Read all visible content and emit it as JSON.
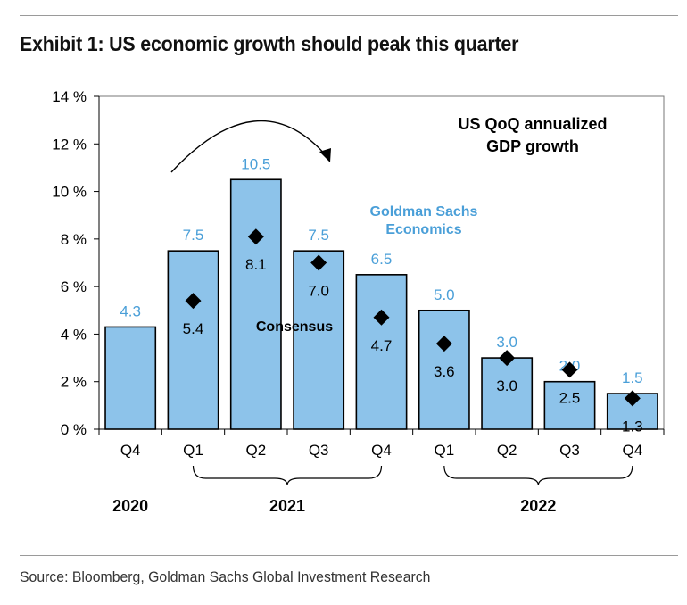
{
  "title": "Exhibit 1: US economic growth should peak this quarter",
  "source": "Source: Bloomberg, Goldman Sachs Global Investment Research",
  "colors": {
    "bar_fill": "#8dc3ea",
    "bar_stroke": "#000000",
    "gs_label": "#4a9fd8",
    "marker": "#000000",
    "text": "#000000"
  },
  "chart_data": {
    "type": "bar",
    "title": "US QoQ annualized GDP growth",
    "title_lines": [
      "US QoQ annualized",
      "GDP growth"
    ],
    "categories": [
      "Q4",
      "Q1",
      "Q2",
      "Q3",
      "Q4",
      "Q1",
      "Q2",
      "Q3",
      "Q4"
    ],
    "years": [
      {
        "label": "2020",
        "from": 0,
        "to": 0
      },
      {
        "label": "2021",
        "from": 1,
        "to": 4
      },
      {
        "label": "2022",
        "from": 5,
        "to": 8
      }
    ],
    "ylim": [
      0,
      14
    ],
    "yticks": [
      0,
      2,
      4,
      6,
      8,
      10,
      12,
      14
    ],
    "ytick_labels": [
      "0 %",
      "2 %",
      "4 %",
      "6 %",
      "8 %",
      "10 %",
      "12 %",
      "14 %"
    ],
    "series": [
      {
        "name": "Goldman Sachs Economics",
        "name_lines": [
          "Goldman Sachs",
          "Economics"
        ],
        "type": "bar",
        "values": [
          4.3,
          7.5,
          10.5,
          7.5,
          6.5,
          5.0,
          3.0,
          2.0,
          1.5
        ],
        "labels": [
          "4.3",
          "7.5",
          "10.5",
          "7.5",
          "6.5",
          "5.0",
          "3.0",
          "2.0",
          "1.5"
        ]
      },
      {
        "name": "Consensus",
        "type": "marker",
        "values": [
          null,
          5.4,
          8.1,
          7.0,
          4.7,
          3.6,
          3.0,
          2.5,
          1.3
        ],
        "labels": [
          "",
          "5.4",
          "8.1",
          "7.0",
          "4.7",
          "3.6",
          "3.0",
          "2.5",
          "1.3"
        ]
      }
    ],
    "grid": false
  }
}
